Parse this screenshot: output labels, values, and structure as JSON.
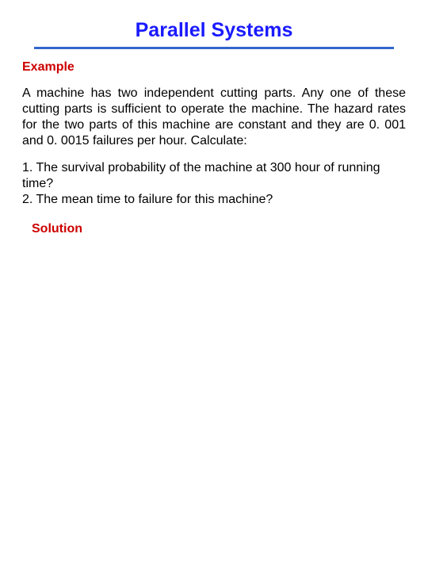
{
  "title": {
    "text": "Parallel Systems",
    "color": "#1a1aff",
    "fontsize": 25
  },
  "divider": {
    "color": "#3366cc",
    "height": 3,
    "width_percent": 94
  },
  "example_label": {
    "text": "Example",
    "color": "#cc0000",
    "fontsize": 16
  },
  "body": {
    "text": "A machine has two independent cutting parts. Any one of these cutting parts is sufficient to operate the machine. The hazard rates for the two parts of this machine are constant and they are 0. 001 and 0. 0015 failures per hour. Calculate:",
    "color": "#000000",
    "fontsize": 16
  },
  "questions": {
    "items": [
      "1. The survival probability of the machine at 300 hour of running time?",
      "2. The mean time to failure for this machine?"
    ],
    "color": "#000000",
    "fontsize": 16
  },
  "solution_label": {
    "text": "Solution",
    "color": "#cc0000",
    "fontsize": 16
  }
}
